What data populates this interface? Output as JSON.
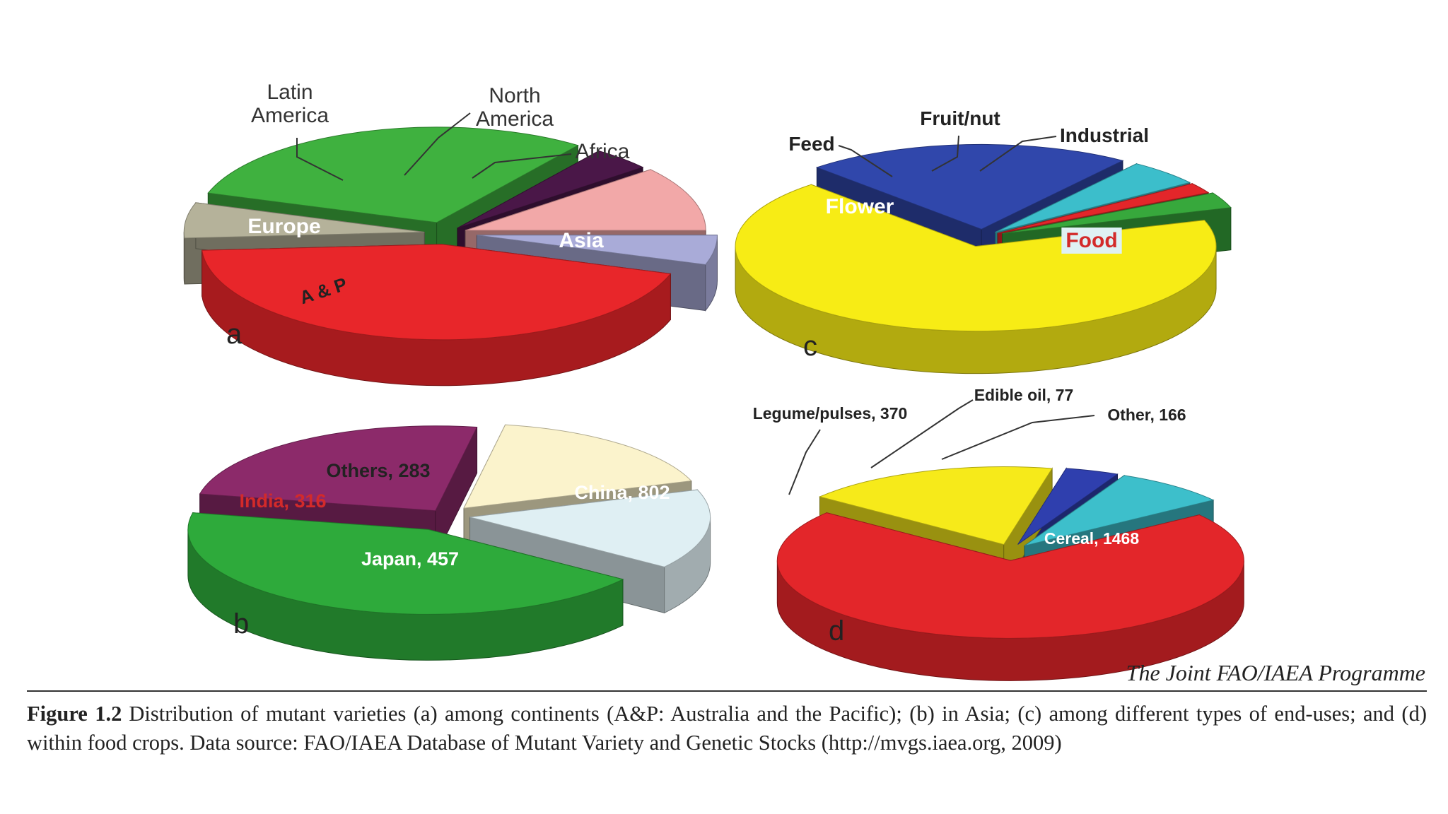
{
  "chart_data": [
    {
      "id": "a",
      "type": "pie",
      "panel_label": "a",
      "slices": [
        {
          "label": "Asia",
          "value": 44,
          "color": "#e8262a"
        },
        {
          "label": "A & P",
          "value": 6,
          "color": "#b5b29a"
        },
        {
          "label": "Europe",
          "value": 30,
          "color": "#3fb13f"
        },
        {
          "label": "Latin America",
          "value": 4,
          "color": "#4a1748"
        },
        {
          "label": "North America",
          "value": 11,
          "color": "#f2a8a8"
        },
        {
          "label": "Africa",
          "value": 5,
          "color": "#a9abd8"
        }
      ]
    },
    {
      "id": "b",
      "type": "pie",
      "panel_label": "b",
      "slices": [
        {
          "label": "China, 802",
          "value": 802,
          "color": "#2eaa3b"
        },
        {
          "label": "Japan, 457",
          "value": 457,
          "color": "#8c2a6a"
        },
        {
          "label": "India, 316",
          "value": 316,
          "color": "#fbf3cc"
        },
        {
          "label": "Others, 283",
          "value": 283,
          "color": "#dfeff3"
        }
      ]
    },
    {
      "id": "c",
      "type": "pie",
      "panel_label": "c",
      "slices": [
        {
          "label": "Food",
          "value": 68,
          "color": "#f7ec15"
        },
        {
          "label": "Flower",
          "value": 22,
          "color": "#3047ab"
        },
        {
          "label": "Feed",
          "value": 5,
          "color": "#3cbecb"
        },
        {
          "label": "Fruit/nut",
          "value": 2,
          "color": "#e3262a"
        },
        {
          "label": "Industrial",
          "value": 3,
          "color": "#37a83c"
        }
      ]
    },
    {
      "id": "d",
      "type": "pie",
      "panel_label": "d",
      "slices": [
        {
          "label": "Cereal, 1468",
          "value": 1468,
          "color": "#e3262a"
        },
        {
          "label": "Legume/pulses, 370",
          "value": 370,
          "color": "#f6ea1a"
        },
        {
          "label": "Edible oil, 77",
          "value": 77,
          "color": "#2f3fae"
        },
        {
          "label": "Other, 166",
          "value": 166,
          "color": "#3dbfcb"
        }
      ]
    }
  ],
  "attribution": "The Joint FAO/IAEA Programme",
  "caption": {
    "label": "Figure 1.2",
    "text": "Distribution of mutant varieties (a) among continents (A&P: Australia and the Pacific); (b) in Asia; (c) among different types of end-uses; and (d) within food crops. Data source: FAO/IAEA Database of Mutant Variety and Genetic Stocks (http://mvgs.iaea.org, 2009)"
  }
}
